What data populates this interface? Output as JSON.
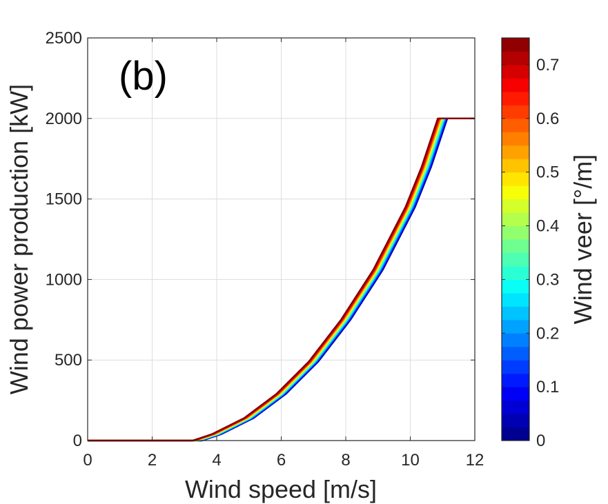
{
  "chart_data": {
    "type": "line",
    "panel_label": "(b)",
    "xlabel": "Wind speed [m/s]",
    "ylabel": "Wind power production [kW]",
    "xlim": [
      0,
      12
    ],
    "ylim": [
      0,
      2500
    ],
    "x_ticks": [
      0,
      2,
      4,
      6,
      8,
      10,
      12
    ],
    "y_ticks": [
      0,
      500,
      1000,
      1500,
      2000,
      2500
    ],
    "grid": true,
    "rated_power": 2000,
    "cut_in_speed": 3.4,
    "rated_speed_range": [
      10.85,
      11.15
    ],
    "curve_x": [
      0,
      3.4,
      4,
      5,
      6,
      7,
      8,
      9,
      10,
      10.5,
      11
    ],
    "curve_y_no_veer": [
      0,
      0,
      40,
      140,
      290,
      490,
      750,
      1060,
      1450,
      1700,
      2000
    ],
    "colorbar": {
      "label": "Wind veer [°/m]",
      "colormap": "jet",
      "range": [
        0,
        0.75
      ],
      "levels": 30,
      "ticks": [
        0,
        0.1,
        0.2,
        0.3,
        0.4,
        0.5,
        0.6,
        0.7
      ]
    }
  }
}
